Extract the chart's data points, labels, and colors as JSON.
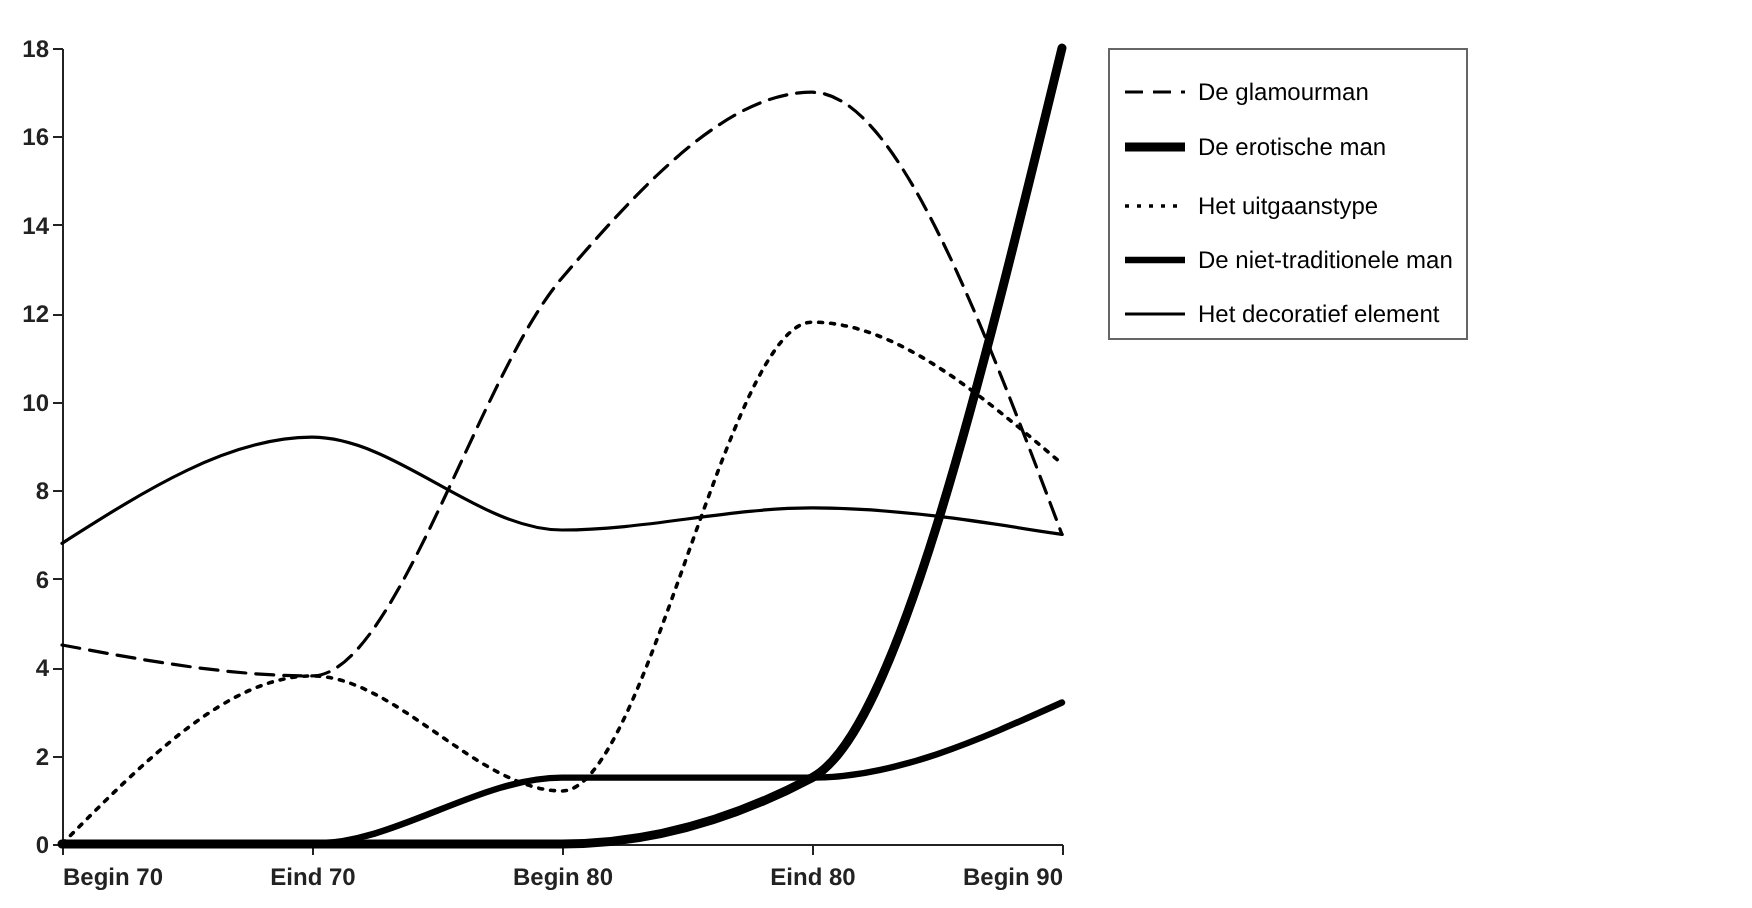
{
  "chart_data": {
    "type": "line",
    "categories": [
      "Begin 70",
      "Eind 70",
      "Begin 80",
      "Eind 80",
      "Begin 90"
    ],
    "series": [
      {
        "name": "De glamourman",
        "color": "#000000",
        "line_style": "dashed",
        "values": [
          4.5,
          3.8,
          12.8,
          17,
          7
        ]
      },
      {
        "name": "De erotische man",
        "color": "#000000",
        "line_style": "solid",
        "values": [
          0,
          0,
          0,
          1.5,
          18
        ]
      },
      {
        "name": "Het uitgaanstype",
        "color": "#000000",
        "line_style": "dotted",
        "values": [
          0,
          3.8,
          1.2,
          11.8,
          8.6
        ]
      },
      {
        "name": "De niet-traditionele man",
        "color": "#000000",
        "line_style": "solid",
        "values": [
          0,
          0,
          1.5,
          1.5,
          3.2
        ]
      },
      {
        "name": "Het decoratief element",
        "color": "#000000",
        "line_style": "solid",
        "values": [
          6.8,
          9.2,
          7.1,
          7.6,
          7
        ]
      }
    ],
    "ylim": [
      0,
      18
    ],
    "yticks": [
      0,
      2,
      4,
      6,
      8,
      10,
      12,
      14,
      16,
      18
    ],
    "grid": false,
    "legend": "right",
    "marker": "none"
  }
}
